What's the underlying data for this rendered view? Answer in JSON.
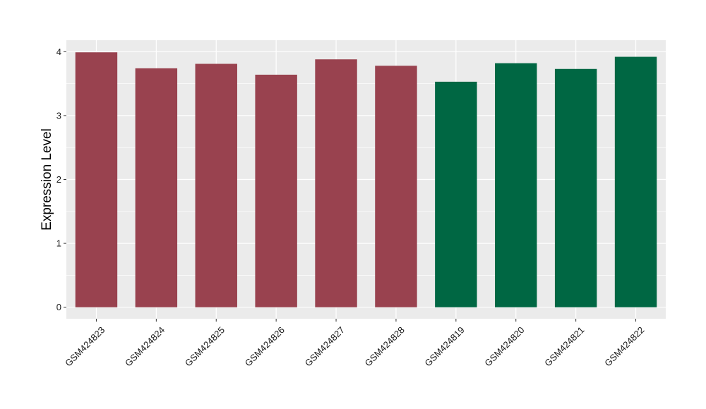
{
  "chart_data": {
    "type": "bar",
    "categories": [
      "GSM424823",
      "GSM424824",
      "GSM424825",
      "GSM424826",
      "GSM424827",
      "GSM424828",
      "GSM424819",
      "GSM424820",
      "GSM424821",
      "GSM424822"
    ],
    "values": [
      3.99,
      3.74,
      3.81,
      3.64,
      3.88,
      3.78,
      3.53,
      3.82,
      3.73,
      3.92
    ],
    "bar_colors": [
      "#99424f",
      "#99424f",
      "#99424f",
      "#99424f",
      "#99424f",
      "#99424f",
      "#006743",
      "#006743",
      "#006743",
      "#006743"
    ],
    "title": "",
    "xlabel": "",
    "ylabel": "Expression Level",
    "ylim": [
      -0.18,
      4.18
    ],
    "yticks": [
      0,
      1,
      2,
      3,
      4
    ],
    "ytick_labels": [
      "0",
      "1",
      "2",
      "3",
      "4"
    ],
    "grid": true,
    "legend": "none",
    "panel_background": "#ebebeb",
    "gridline_color": "#ffffff"
  }
}
